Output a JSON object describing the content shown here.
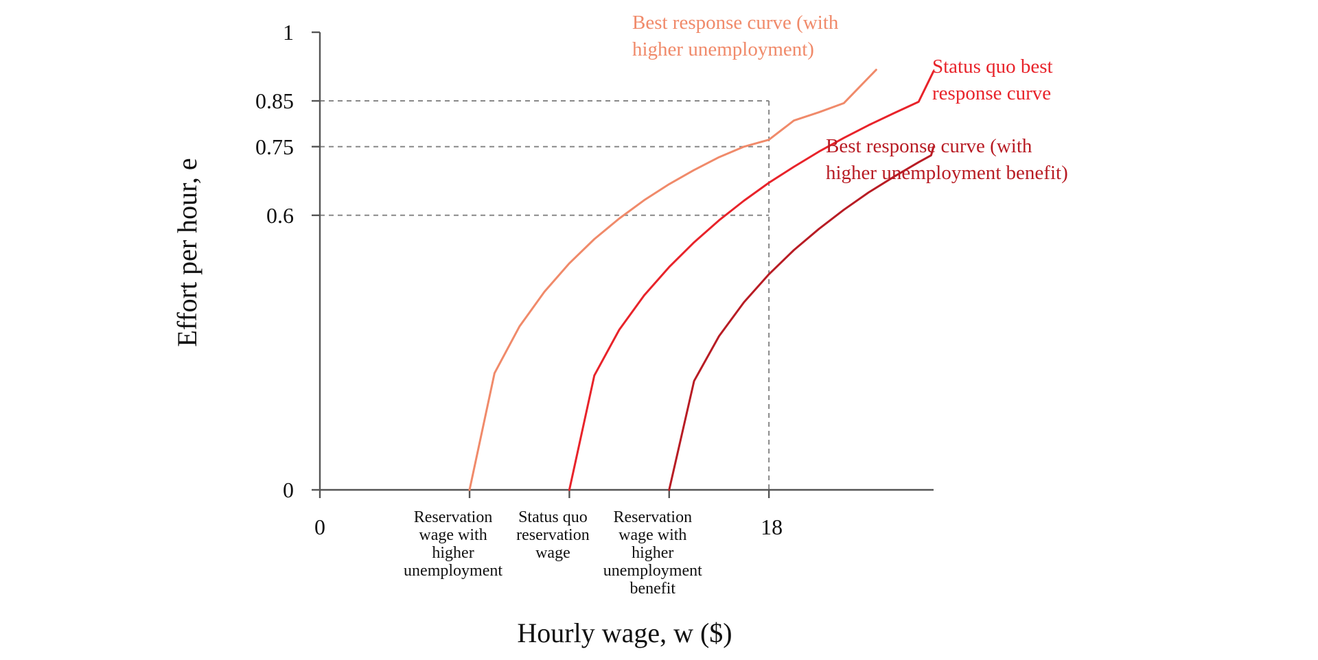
{
  "chart_data": {
    "type": "line",
    "title": "",
    "xlabel": "Hourly wage,  w ($)",
    "ylabel": "Effort per hour,  e",
    "xlim": [
      0,
      24.6
    ],
    "ylim": [
      0,
      1
    ],
    "x_ticks": [
      {
        "value": 0,
        "label": "0"
      },
      {
        "value": 18,
        "label": "18"
      }
    ],
    "y_ticks": [
      {
        "value": 0,
        "label": "0"
      },
      {
        "value": 0.6,
        "label": "0.6"
      },
      {
        "value": 0.75,
        "label": "0.75"
      },
      {
        "value": 0.85,
        "label": "0.85"
      },
      {
        "value": 1,
        "label": "1"
      }
    ],
    "reference_lines": [
      {
        "orientation": "horizontal",
        "y": 0.85,
        "x_to": 18
      },
      {
        "orientation": "horizontal",
        "y": 0.75,
        "x_to": 18
      },
      {
        "orientation": "horizontal",
        "y": 0.6,
        "x_to": 18
      },
      {
        "orientation": "vertical",
        "x": 18,
        "y_to": 0.85
      }
    ],
    "wage_markers": [
      {
        "x": 6,
        "label": [
          "Reservation",
          "wage with",
          "higher",
          "unemployment"
        ]
      },
      {
        "x": 10,
        "label": [
          "Status quo",
          "reservation",
          "wage"
        ]
      },
      {
        "x": 14,
        "label": [
          "Reservation",
          "wage with",
          "higher",
          "unemployment",
          "benefit"
        ]
      }
    ],
    "series": [
      {
        "label": [
          "Best response curve (with",
          "higher unemployment)"
        ],
        "color": "#f08a6a",
        "reservation_wage": 6,
        "x": [
          6,
          7,
          8,
          9,
          10,
          11,
          12,
          13,
          14,
          15,
          16,
          17,
          18,
          19,
          20,
          21,
          22.3
        ],
        "y": [
          0,
          0.255,
          0.357,
          0.433,
          0.495,
          0.548,
          0.593,
          0.633,
          0.668,
          0.699,
          0.727,
          0.75,
          0.765,
          0.807,
          0.825,
          0.845,
          0.918
        ]
      },
      {
        "label": [
          "Status quo best",
          "response curve"
        ],
        "color": "#e8232a",
        "reservation_wage": 10,
        "x": [
          10,
          11,
          12,
          13,
          14,
          15,
          16,
          17,
          18,
          19,
          20,
          21,
          22,
          23,
          24,
          24.6
        ],
        "y": [
          0,
          0.25,
          0.35,
          0.425,
          0.487,
          0.541,
          0.589,
          0.632,
          0.671,
          0.706,
          0.739,
          0.769,
          0.797,
          0.823,
          0.848,
          0.915
        ]
      },
      {
        "label": [
          "Best response curve (with",
          "higher unemployment benefit)"
        ],
        "color": "#b81c24",
        "reservation_wage": 14,
        "x": [
          14,
          15,
          16,
          17,
          18,
          19,
          20,
          21,
          22,
          23,
          24,
          24.5,
          24.6
        ],
        "y": [
          0,
          0.238,
          0.336,
          0.41,
          0.471,
          0.524,
          0.57,
          0.612,
          0.65,
          0.684,
          0.716,
          0.731,
          0.75
        ]
      }
    ]
  }
}
